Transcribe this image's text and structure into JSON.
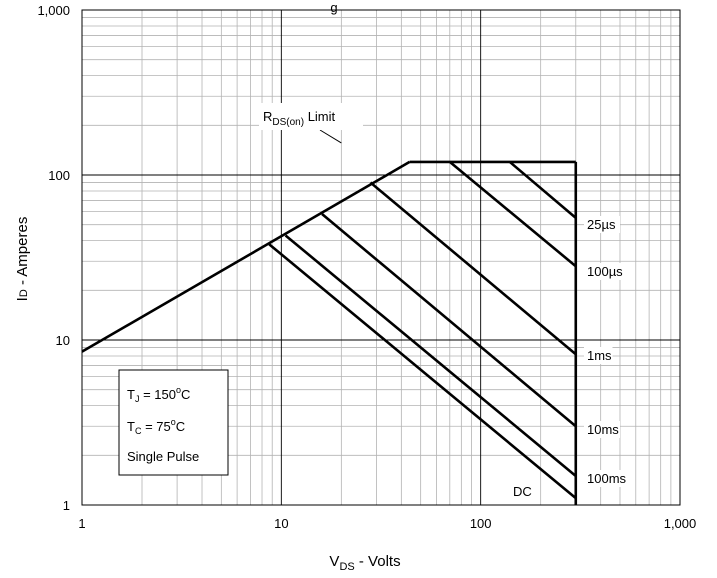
{
  "chart_data": {
    "type": "line",
    "title": "",
    "title_fragment": "g",
    "xlabel": {
      "main": "V",
      "sub": "DS",
      "rest": " - Volts"
    },
    "ylabel": {
      "main": "I",
      "sub": "D",
      "rest": " - Amperes"
    },
    "xscale": "log",
    "yscale": "log",
    "xlim": [
      1,
      1000
    ],
    "ylim": [
      1,
      1000
    ],
    "x_tick_labels": [
      "1",
      "10",
      "100",
      "1,000"
    ],
    "y_tick_labels": [
      "1",
      "10",
      "100",
      "1,000"
    ],
    "grid": true,
    "boundary": {
      "rds_on_limit": [
        [
          1,
          8.5
        ],
        [
          44,
          120
        ]
      ],
      "current_limit": [
        [
          44,
          120
        ],
        [
          300,
          120
        ]
      ],
      "voltage_limit": [
        [
          300,
          120
        ],
        [
          300,
          1
        ]
      ]
    },
    "series": [
      {
        "name": "25µs",
        "points": [
          [
            140,
            120
          ],
          [
            300,
            55
          ]
        ]
      },
      {
        "name": "100µs",
        "points": [
          [
            70,
            120
          ],
          [
            300,
            28
          ]
        ]
      },
      {
        "name": "1ms",
        "points": [
          [
            28,
            90
          ],
          [
            300,
            8.2
          ]
        ]
      },
      {
        "name": "10ms",
        "points": [
          [
            16,
            58
          ],
          [
            300,
            3.0
          ]
        ]
      },
      {
        "name": "100ms",
        "points": [
          [
            10.5,
            43
          ],
          [
            300,
            1.5
          ]
        ]
      },
      {
        "name": "DC",
        "points": [
          [
            8.7,
            38
          ],
          [
            300,
            1.1
          ]
        ]
      }
    ],
    "annotations": {
      "rds_label": {
        "main": "R",
        "sub": "DS(on)",
        "rest": " Limit"
      },
      "conditions": [
        {
          "main": "T",
          "sub": "J",
          "rest": " = 150",
          "sup": "o",
          "tail": "C"
        },
        {
          "main": "T",
          "sub": "C",
          "rest": " = 75",
          "sup": "o",
          "tail": "C"
        },
        {
          "main": "Single Pulse",
          "sub": "",
          "rest": "",
          "sup": "",
          "tail": ""
        }
      ]
    }
  }
}
